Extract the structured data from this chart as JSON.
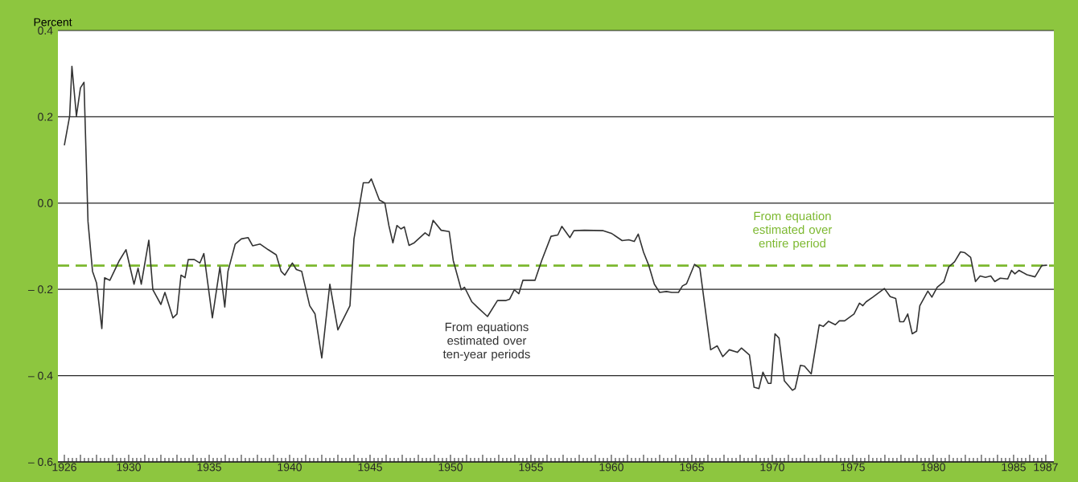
{
  "chart_data": {
    "type": "line",
    "ylabel": "Percent",
    "xlim": [
      1925.6,
      1987.5
    ],
    "ylim": [
      -0.6,
      0.4
    ],
    "xticks": [
      1926,
      {
        "value": 1927,
        "label": null
      },
      {
        "value": 1928,
        "label": null
      },
      {
        "value": 1929,
        "label": null
      },
      1930,
      {
        "value": 1931,
        "label": null
      },
      {
        "value": 1932,
        "label": null
      },
      {
        "value": 1933,
        "label": null
      },
      {
        "value": 1934,
        "label": null
      },
      1935,
      {
        "value": 1936,
        "label": null
      },
      {
        "value": 1937,
        "label": null
      },
      {
        "value": 1938,
        "label": null
      },
      {
        "value": 1939,
        "label": null
      },
      1940,
      {
        "value": 1941,
        "label": null
      },
      {
        "value": 1942,
        "label": null
      },
      {
        "value": 1943,
        "label": null
      },
      {
        "value": 1944,
        "label": null
      },
      1945,
      {
        "value": 1946,
        "label": null
      },
      {
        "value": 1947,
        "label": null
      },
      {
        "value": 1948,
        "label": null
      },
      {
        "value": 1949,
        "label": null
      },
      1950,
      {
        "value": 1951,
        "label": null
      },
      {
        "value": 1952,
        "label": null
      },
      {
        "value": 1953,
        "label": null
      },
      {
        "value": 1954,
        "label": null
      },
      1955,
      {
        "value": 1956,
        "label": null
      },
      {
        "value": 1957,
        "label": null
      },
      {
        "value": 1958,
        "label": null
      },
      {
        "value": 1959,
        "label": null
      },
      1960,
      {
        "value": 1961,
        "label": null
      },
      {
        "value": 1962,
        "label": null
      },
      {
        "value": 1963,
        "label": null
      },
      {
        "value": 1964,
        "label": null
      },
      1965,
      {
        "value": 1966,
        "label": null
      },
      {
        "value": 1967,
        "label": null
      },
      {
        "value": 1968,
        "label": null
      },
      {
        "value": 1969,
        "label": null
      },
      1970,
      {
        "value": 1971,
        "label": null
      },
      {
        "value": 1972,
        "label": null
      },
      {
        "value": 1973,
        "label": null
      },
      {
        "value": 1974,
        "label": null
      },
      1975,
      {
        "value": 1976,
        "label": null
      },
      {
        "value": 1977,
        "label": null
      },
      {
        "value": 1978,
        "label": null
      },
      {
        "value": 1979,
        "label": null
      },
      1980,
      {
        "value": 1981,
        "label": null
      },
      {
        "value": 1982,
        "label": null
      },
      {
        "value": 1983,
        "label": null
      },
      {
        "value": 1984,
        "label": null
      },
      1985,
      {
        "value": 1986,
        "label": null
      },
      1987
    ],
    "yticks": [
      {
        "value": -0.6,
        "label": "– 0.6"
      },
      {
        "value": -0.4,
        "label": "– 0.4"
      },
      {
        "value": -0.2,
        "label": "– 0.2"
      },
      {
        "value": 0,
        "label": "0.0"
      },
      0.2,
      0.4
    ],
    "grid": "y",
    "ref_lines": [
      {
        "axis": "y",
        "value": -0.145,
        "label": "From equation estimated over entire period",
        "color": "#7cb82f",
        "line_style": "dashed"
      }
    ],
    "series": [
      {
        "name": "From equations estimated over ten-year periods",
        "color": "#333333",
        "x": [
          1926.0,
          1926.33,
          1926.47,
          1926.75,
          1927.0,
          1927.22,
          1927.47,
          1927.75,
          1928.0,
          1928.33,
          1928.5,
          1928.83,
          1929.42,
          1929.83,
          1930.33,
          1930.58,
          1930.78,
          1931.25,
          1931.5,
          1932.0,
          1932.25,
          1932.75,
          1933.0,
          1933.25,
          1933.5,
          1933.7,
          1934.08,
          1934.42,
          1934.67,
          1935.2,
          1935.67,
          1935.97,
          1936.17,
          1936.62,
          1937.0,
          1937.42,
          1937.7,
          1938.17,
          1938.67,
          1939.17,
          1939.47,
          1939.7,
          1940.17,
          1940.42,
          1940.75,
          1941.25,
          1941.58,
          1942.0,
          1942.5,
          1943.0,
          1943.75,
          1944.0,
          1944.58,
          1944.92,
          1945.08,
          1945.58,
          1945.92,
          1946.17,
          1946.42,
          1946.67,
          1946.92,
          1947.13,
          1947.42,
          1947.75,
          1948.42,
          1948.67,
          1948.92,
          1949.42,
          1949.92,
          1950.17,
          1950.67,
          1950.87,
          1951.33,
          1951.75,
          1952.3,
          1952.92,
          1953.42,
          1953.67,
          1953.97,
          1954.25,
          1954.5,
          1955.25,
          1955.67,
          1956.25,
          1956.67,
          1956.92,
          1957.42,
          1957.67,
          1958.33,
          1959.5,
          1960.0,
          1960.67,
          1961.08,
          1961.42,
          1961.67,
          1962.0,
          1962.33,
          1962.67,
          1963.0,
          1963.42,
          1963.75,
          1964.17,
          1964.42,
          1964.67,
          1965.17,
          1965.5,
          1966.17,
          1966.58,
          1966.92,
          1967.33,
          1967.83,
          1968.08,
          1968.58,
          1968.87,
          1969.17,
          1969.42,
          1969.75,
          1969.92,
          1970.17,
          1970.42,
          1970.75,
          1971.25,
          1971.42,
          1971.75,
          1972.0,
          1972.42,
          1972.92,
          1973.17,
          1973.5,
          1973.92,
          1974.17,
          1974.5,
          1975.08,
          1975.42,
          1975.63,
          1975.83,
          1976.25,
          1976.97,
          1977.33,
          1977.67,
          1977.92,
          1978.17,
          1978.42,
          1978.7,
          1978.97,
          1979.17,
          1979.67,
          1979.92,
          1980.25,
          1980.67,
          1980.97,
          1981.33,
          1981.7,
          1981.97,
          1982.33,
          1982.63,
          1982.92,
          1983.25,
          1983.58,
          1983.83,
          1984.17,
          1984.63,
          1984.87,
          1985.08,
          1985.33,
          1985.83,
          1986.33,
          1986.75,
          1987.08
        ],
        "values": [
          0.134,
          0.202,
          0.317,
          0.202,
          0.267,
          0.28,
          -0.043,
          -0.158,
          -0.185,
          -0.291,
          -0.173,
          -0.179,
          -0.133,
          -0.108,
          -0.188,
          -0.151,
          -0.188,
          -0.086,
          -0.201,
          -0.235,
          -0.207,
          -0.266,
          -0.257,
          -0.167,
          -0.173,
          -0.131,
          -0.131,
          -0.139,
          -0.117,
          -0.266,
          -0.148,
          -0.241,
          -0.158,
          -0.095,
          -0.083,
          -0.08,
          -0.099,
          -0.095,
          -0.108,
          -0.12,
          -0.158,
          -0.167,
          -0.139,
          -0.154,
          -0.158,
          -0.238,
          -0.257,
          -0.359,
          -0.188,
          -0.294,
          -0.238,
          -0.083,
          0.047,
          0.047,
          0.056,
          0.007,
          0.0,
          -0.052,
          -0.092,
          -0.052,
          -0.06,
          -0.055,
          -0.098,
          -0.092,
          -0.069,
          -0.076,
          -0.04,
          -0.063,
          -0.066,
          -0.133,
          -0.201,
          -0.195,
          -0.229,
          -0.244,
          -0.263,
          -0.226,
          -0.226,
          -0.223,
          -0.201,
          -0.21,
          -0.179,
          -0.179,
          -0.133,
          -0.077,
          -0.074,
          -0.054,
          -0.08,
          -0.064,
          -0.063,
          -0.064,
          -0.07,
          -0.087,
          -0.085,
          -0.089,
          -0.072,
          -0.114,
          -0.145,
          -0.188,
          -0.207,
          -0.205,
          -0.207,
          -0.207,
          -0.192,
          -0.187,
          -0.142,
          -0.151,
          -0.34,
          -0.331,
          -0.356,
          -0.34,
          -0.346,
          -0.336,
          -0.352,
          -0.427,
          -0.43,
          -0.392,
          -0.418,
          -0.418,
          -0.303,
          -0.313,
          -0.412,
          -0.434,
          -0.43,
          -0.376,
          -0.378,
          -0.396,
          -0.282,
          -0.286,
          -0.274,
          -0.282,
          -0.273,
          -0.273,
          -0.257,
          -0.232,
          -0.238,
          -0.229,
          -0.218,
          -0.198,
          -0.217,
          -0.221,
          -0.275,
          -0.275,
          -0.257,
          -0.303,
          -0.297,
          -0.238,
          -0.204,
          -0.218,
          -0.195,
          -0.182,
          -0.148,
          -0.136,
          -0.113,
          -0.115,
          -0.126,
          -0.182,
          -0.169,
          -0.172,
          -0.169,
          -0.182,
          -0.174,
          -0.176,
          -0.156,
          -0.164,
          -0.156,
          -0.166,
          -0.171,
          -0.145,
          -0.144
        ]
      }
    ]
  }
}
